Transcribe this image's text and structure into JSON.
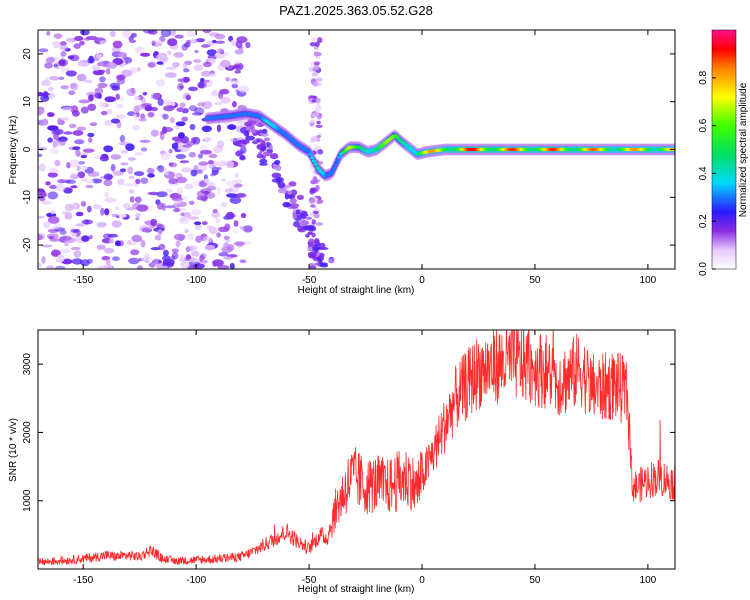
{
  "title": "PAZ1.2025.363.05.52.G28",
  "chart_data": [
    {
      "type": "heatmap",
      "xlabel": "Height of straight line (km)",
      "ylabel": "Frequency (Hz)",
      "xlim": [
        -170,
        112
      ],
      "ylim": [
        -25,
        25
      ],
      "xticks": [
        -150,
        -100,
        -50,
        0,
        50,
        100
      ],
      "yticks": [
        -20,
        -10,
        0,
        10,
        20
      ],
      "colorbar": {
        "label": "Normalized spectral amplitude",
        "range": [
          0.0,
          1.0
        ],
        "ticks": [
          0.0,
          0.2,
          0.4,
          0.6,
          0.8
        ]
      },
      "ridge": {
        "x": [
          -95,
          -85,
          -78,
          -72,
          -66,
          -60,
          -55,
          -50,
          -46,
          -43,
          -40,
          -36,
          -32,
          -28,
          -24,
          -20,
          -16,
          -12,
          -10,
          -6,
          -2,
          2,
          10,
          20,
          40,
          60,
          80,
          90,
          100,
          112
        ],
        "y": [
          6.5,
          7,
          7.5,
          7,
          5,
          3,
          1,
          -0.5,
          -4,
          -5.5,
          -5,
          -1,
          0.5,
          0.5,
          -0.5,
          0,
          1.5,
          3,
          2,
          0.5,
          -1,
          -0.5,
          0,
          0,
          0,
          0,
          0,
          0,
          0,
          0
        ],
        "amplitude": [
          0.3,
          0.25,
          0.3,
          0.35,
          0.4,
          0.35,
          0.4,
          0.3,
          0.5,
          0.55,
          0.4,
          0.5,
          0.7,
          0.6,
          0.75,
          0.8,
          0.7,
          0.6,
          0.55,
          0.75,
          0.7,
          0.8,
          0.85,
          0.95,
          0.9,
          0.9,
          0.85,
          0.8,
          0.85,
          0.8
        ]
      }
    },
    {
      "type": "line",
      "xlabel": "Height of straight line (km)",
      "ylabel": "SNR (10 * v/v)",
      "xlim": [
        -170,
        112
      ],
      "ylim": [
        0,
        3500
      ],
      "xticks": [
        -150,
        -100,
        -50,
        0,
        50,
        100
      ],
      "yticks": [
        1000,
        2000,
        3000
      ],
      "series": [
        {
          "name": "SNR",
          "color": "#ff2a2a",
          "x": [
            -170,
            -160,
            -150,
            -140,
            -135,
            -130,
            -125,
            -120,
            -115,
            -110,
            -100,
            -90,
            -80,
            -75,
            -70,
            -65,
            -60,
            -55,
            -50,
            -45,
            -42,
            -38,
            -35,
            -32,
            -30,
            -25,
            -20,
            -15,
            -10,
            -5,
            -3,
            0,
            5,
            10,
            15,
            20,
            25,
            30,
            35,
            40,
            45,
            50,
            55,
            60,
            65,
            70,
            75,
            80,
            85,
            90,
            91,
            93,
            95,
            100,
            105,
            112
          ],
          "y": [
            100,
            120,
            150,
            200,
            180,
            200,
            180,
            280,
            150,
            120,
            130,
            150,
            180,
            250,
            350,
            450,
            550,
            400,
            300,
            500,
            450,
            900,
            1100,
            1300,
            1350,
            1200,
            1250,
            1200,
            1300,
            1350,
            1150,
            1350,
            1700,
            2100,
            2500,
            2700,
            2900,
            2950,
            3000,
            3050,
            3000,
            2950,
            2900,
            2750,
            2800,
            2950,
            2650,
            2650,
            2700,
            2600,
            2500,
            1250,
            1200,
            1300,
            1350,
            1250
          ]
        }
      ]
    }
  ]
}
